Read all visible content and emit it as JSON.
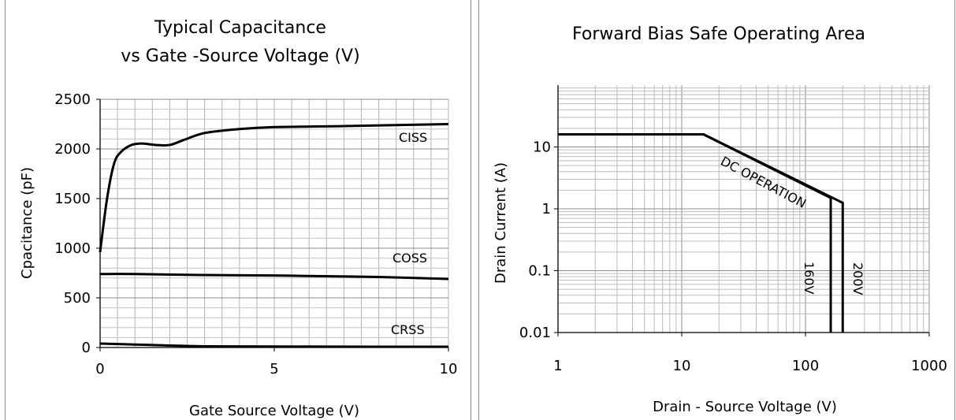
{
  "chart_data": [
    {
      "type": "line",
      "title_lines": [
        "Typical Capacitance",
        "vs Gate -Source Voltage  (V)"
      ],
      "xlabel": "Gate Source  Voltage (V)",
      "ylabel": "Cpacitance  (pF)",
      "xlim": [
        0,
        10
      ],
      "ylim": [
        0,
        2500
      ],
      "x_ticks": [
        0,
        5,
        10
      ],
      "y_ticks": [
        0,
        500,
        1000,
        1500,
        2000,
        2500
      ],
      "grid": true,
      "series": [
        {
          "name": "CISS",
          "points": [
            [
              0,
              960
            ],
            [
              0.2,
              1500
            ],
            [
              0.4,
              1850
            ],
            [
              0.6,
              1970
            ],
            [
              0.9,
              2040
            ],
            [
              1.2,
              2055
            ],
            [
              1.6,
              2040
            ],
            [
              2.0,
              2040
            ],
            [
              2.4,
              2090
            ],
            [
              3.0,
              2160
            ],
            [
              4.0,
              2200
            ],
            [
              5.0,
              2220
            ],
            [
              7.0,
              2230
            ],
            [
              10.0,
              2250
            ]
          ]
        },
        {
          "name": "COSS",
          "points": [
            [
              0,
              740
            ],
            [
              1,
              740
            ],
            [
              3,
              730
            ],
            [
              5,
              725
            ],
            [
              6,
              720
            ],
            [
              8,
              710
            ],
            [
              10,
              690
            ]
          ]
        },
        {
          "name": "CRSS",
          "points": [
            [
              0,
              40
            ],
            [
              1,
              30
            ],
            [
              2,
              20
            ],
            [
              3,
              12
            ],
            [
              5,
              10
            ],
            [
              8,
              8
            ],
            [
              10,
              8
            ]
          ]
        }
      ]
    },
    {
      "type": "line",
      "title": "Forward Bias Safe Operating Area",
      "xlabel": "Drain - Source Voltage  (V)",
      "ylabel": "Drain Current   (A)",
      "xscale": "log",
      "yscale": "log",
      "xlim": [
        1,
        1000
      ],
      "ylim": [
        0.01,
        100
      ],
      "x_ticks": [
        "1",
        "10",
        "100",
        "1000"
      ],
      "y_ticks": [
        "0.01",
        "0.1",
        "1",
        "10"
      ],
      "grid": true,
      "series": [
        {
          "name": "160V",
          "points": [
            [
              1,
              16
            ],
            [
              15,
              16
            ],
            [
              160,
              1.5
            ],
            [
              160,
              0.01
            ]
          ]
        },
        {
          "name": "200V",
          "points": [
            [
              1,
              16
            ],
            [
              15,
              16
            ],
            [
              200,
              1.25
            ],
            [
              200,
              0.01
            ]
          ]
        }
      ],
      "annotations": [
        "DC OPERATION"
      ]
    }
  ]
}
